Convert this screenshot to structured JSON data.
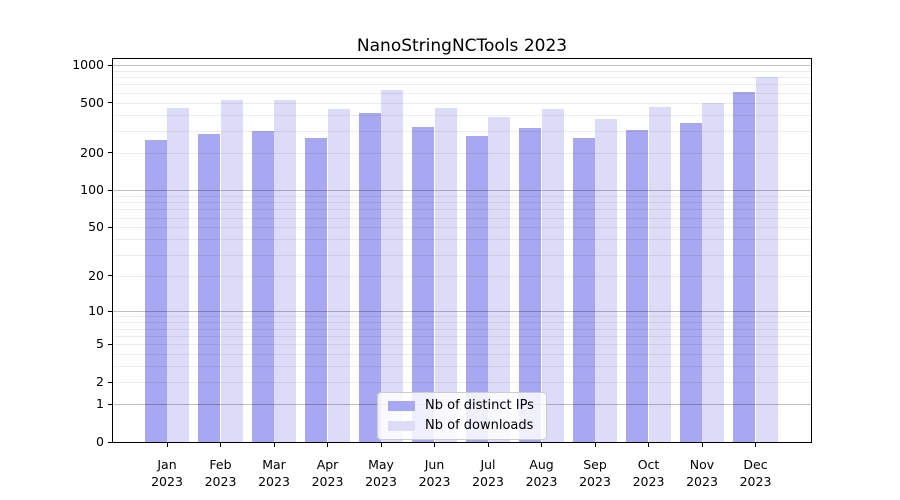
{
  "chart_data": {
    "type": "bar",
    "title": "NanoStringNCTools 2023",
    "categories": [
      "Jan 2023",
      "Feb 2023",
      "Mar 2023",
      "Apr 2023",
      "May 2023",
      "Jun 2023",
      "Jul 2023",
      "Aug 2023",
      "Sep 2023",
      "Oct 2023",
      "Nov 2023",
      "Dec 2023"
    ],
    "series": [
      {
        "name": "Nb of distinct IPs",
        "color": "#a8a8f2",
        "values": [
          253,
          283,
          298,
          262,
          413,
          320,
          270,
          312,
          260,
          302,
          342,
          609
        ]
      },
      {
        "name": "Nb of downloads",
        "color": "#dcdcf9",
        "values": [
          457,
          526,
          522,
          447,
          628,
          451,
          385,
          443,
          368,
          459,
          495,
          798
        ]
      }
    ],
    "xlabel": "",
    "ylabel": "",
    "yaxis": {
      "scale": "log1p",
      "tick_values": [
        0,
        1,
        2,
        5,
        10,
        20,
        50,
        100,
        200,
        500,
        1000
      ],
      "tick_labels": [
        "0",
        "1",
        "2",
        "5",
        "10",
        "20",
        "50",
        "100",
        "200",
        "500",
        "1000"
      ],
      "ylim": [
        0,
        1000
      ]
    },
    "grid": "both",
    "legend_position": "bottom-center",
    "major_grid_values": [
      1,
      10,
      100,
      1000
    ]
  }
}
